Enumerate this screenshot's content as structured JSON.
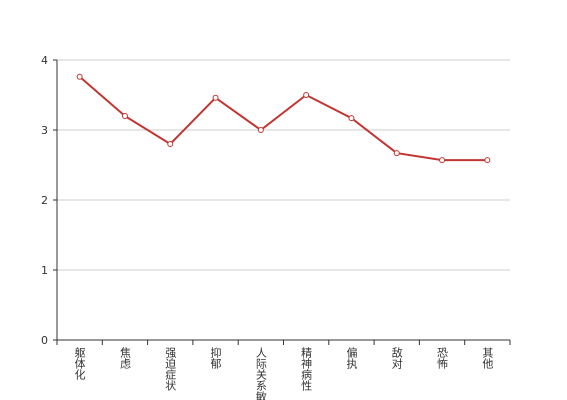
{
  "chart_data": {
    "type": "line",
    "categories": [
      "躯体化",
      "焦虑",
      "强迫症状",
      "抑郁",
      "人际关系敏感",
      "精神病性",
      "偏执",
      "敌对",
      "恐怖",
      "其他"
    ],
    "values": [
      3.76,
      3.2,
      2.8,
      3.46,
      3.0,
      3.5,
      3.17,
      2.67,
      2.57,
      2.57
    ],
    "color": "#c23531",
    "ylim": [
      0,
      4
    ],
    "yticks": [
      0,
      1,
      2,
      3,
      4
    ],
    "grid": true
  }
}
